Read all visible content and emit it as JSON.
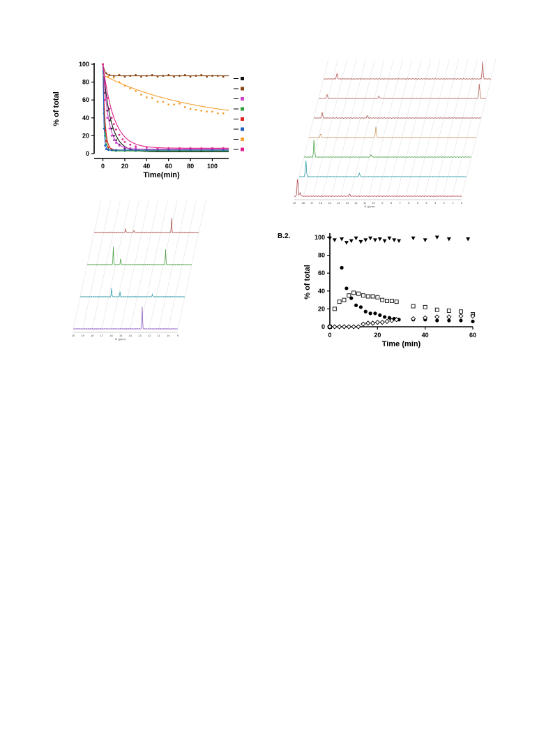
{
  "chart_data": [
    {
      "type": "scatter",
      "id": "kinetics-color",
      "ylabel": "% of total",
      "xlabel": "Time(min)",
      "xlim": [
        -8,
        115
      ],
      "ylim": [
        0,
        100
      ],
      "xticks": [
        0,
        20,
        40,
        60,
        80,
        100
      ],
      "yticks": [
        0,
        20,
        40,
        60,
        80,
        100
      ],
      "legend_position": "right",
      "series": [
        {
          "color": "#111111",
          "k": 0.14,
          "plateau": 2,
          "points": [
            [
              0,
              100
            ],
            [
              2,
              68
            ],
            [
              4,
              48
            ],
            [
              6,
              37
            ],
            [
              8,
              28
            ],
            [
              10,
              20
            ],
            [
              12,
              15
            ],
            [
              15,
              10
            ],
            [
              20,
              6
            ],
            [
              25,
              4
            ],
            [
              30,
              3
            ],
            [
              40,
              3
            ],
            [
              50,
              3
            ],
            [
              60,
              3
            ],
            [
              70,
              3
            ],
            [
              80,
              3
            ],
            [
              90,
              3
            ],
            [
              100,
              3
            ],
            [
              110,
              3
            ]
          ]
        },
        {
          "color": "#8B4513",
          "k": 0.5,
          "plateau": 87,
          "points": [
            [
              0,
              100
            ],
            [
              3,
              90
            ],
            [
              6,
              88
            ],
            [
              10,
              87
            ],
            [
              15,
              88
            ],
            [
              20,
              86
            ],
            [
              25,
              87
            ],
            [
              30,
              88
            ],
            [
              35,
              86
            ],
            [
              40,
              87
            ],
            [
              45,
              88
            ],
            [
              50,
              86
            ],
            [
              55,
              87
            ],
            [
              60,
              88
            ],
            [
              65,
              86
            ],
            [
              70,
              87
            ],
            [
              75,
              88
            ],
            [
              80,
              86
            ],
            [
              85,
              87
            ],
            [
              90,
              88
            ],
            [
              95,
              86
            ],
            [
              100,
              87
            ],
            [
              105,
              87
            ],
            [
              110,
              86
            ]
          ]
        },
        {
          "color": "#CC44CC",
          "k": 0.2,
          "plateau": 5,
          "points": [
            [
              0,
              100
            ],
            [
              2,
              60
            ],
            [
              4,
              40
            ],
            [
              6,
              28
            ],
            [
              8,
              20
            ],
            [
              10,
              15
            ],
            [
              12,
              12
            ],
            [
              15,
              9
            ],
            [
              20,
              7
            ],
            [
              25,
              6
            ],
            [
              30,
              6
            ],
            [
              40,
              5
            ],
            [
              50,
              5
            ],
            [
              60,
              6
            ],
            [
              70,
              5
            ],
            [
              80,
              6
            ],
            [
              90,
              5
            ],
            [
              100,
              6
            ],
            [
              110,
              5
            ]
          ]
        },
        {
          "color": "#2E9E3A",
          "k": 0.7,
          "plateau": 3,
          "points": [
            [
              0,
              100
            ],
            [
              1,
              45
            ],
            [
              2,
              20
            ],
            [
              3,
              10
            ],
            [
              5,
              5
            ],
            [
              8,
              4
            ],
            [
              12,
              3
            ],
            [
              20,
              3
            ],
            [
              30,
              3
            ],
            [
              40,
              3
            ],
            [
              60,
              3
            ],
            [
              80,
              3
            ],
            [
              100,
              3
            ],
            [
              110,
              3
            ]
          ]
        },
        {
          "color": "#E02020",
          "k": 0.55,
          "plateau": 4,
          "points": [
            [
              0,
              100
            ],
            [
              1,
              50
            ],
            [
              2,
              26
            ],
            [
              3,
              14
            ],
            [
              5,
              7
            ],
            [
              8,
              5
            ],
            [
              12,
              4
            ],
            [
              20,
              4
            ],
            [
              30,
              4
            ],
            [
              40,
              4
            ],
            [
              60,
              4
            ],
            [
              80,
              4
            ],
            [
              100,
              4
            ],
            [
              110,
              4
            ]
          ]
        },
        {
          "color": "#1F5FC4",
          "k": 1.2,
          "plateau": 4,
          "points": [
            [
              0,
              100
            ],
            [
              1,
              28
            ],
            [
              2,
              9
            ],
            [
              3,
              5
            ],
            [
              5,
              4
            ],
            [
              8,
              4
            ],
            [
              12,
              4
            ],
            [
              20,
              4
            ],
            [
              30,
              4
            ],
            [
              40,
              4
            ],
            [
              60,
              4
            ],
            [
              80,
              4
            ],
            [
              100,
              4
            ],
            [
              110,
              4
            ]
          ]
        },
        {
          "color": "#F5A030",
          "k": 0.012,
          "plateau": 35,
          "start": 88,
          "points": [
            [
              0,
              100
            ],
            [
              5,
              86
            ],
            [
              10,
              85
            ],
            [
              15,
              80
            ],
            [
              20,
              76
            ],
            [
              25,
              73
            ],
            [
              30,
              70
            ],
            [
              35,
              66
            ],
            [
              40,
              63
            ],
            [
              45,
              62
            ],
            [
              50,
              58
            ],
            [
              55,
              58
            ],
            [
              60,
              55
            ],
            [
              65,
              55
            ],
            [
              70,
              56
            ],
            [
              75,
              52
            ],
            [
              80,
              50
            ],
            [
              85,
              49
            ],
            [
              90,
              48
            ],
            [
              95,
              47
            ],
            [
              100,
              47
            ],
            [
              105,
              45
            ],
            [
              110,
              45
            ]
          ]
        },
        {
          "color": "#E0208C",
          "k": 0.1,
          "plateau": 6,
          "points": [
            [
              0,
              100
            ],
            [
              2,
              78
            ],
            [
              4,
              62
            ],
            [
              6,
              50
            ],
            [
              8,
              40
            ],
            [
              10,
              33
            ],
            [
              12,
              27
            ],
            [
              15,
              21
            ],
            [
              18,
              16
            ],
            [
              20,
              13
            ],
            [
              25,
              10
            ],
            [
              30,
              8
            ],
            [
              40,
              7
            ],
            [
              50,
              6
            ],
            [
              60,
              6
            ],
            [
              70,
              6
            ],
            [
              80,
              6
            ],
            [
              90,
              6
            ],
            [
              100,
              6
            ],
            [
              110,
              6
            ]
          ]
        }
      ]
    },
    {
      "type": "scatter",
      "id": "kinetics-bw",
      "panel_label": "B.2.",
      "ylabel": "% of total",
      "xlabel": "Time (min)",
      "xlim": [
        0,
        60
      ],
      "ylim": [
        0,
        100
      ],
      "xticks": [
        0,
        20,
        40,
        60
      ],
      "yticks": [
        0,
        20,
        40,
        60,
        80,
        100
      ],
      "series": [
        {
          "marker": "triangle-down",
          "points": [
            [
              0,
              99
            ],
            [
              2,
              97
            ],
            [
              5,
              98
            ],
            [
              7,
              94
            ],
            [
              9,
              96
            ],
            [
              11,
              99
            ],
            [
              13,
              95
            ],
            [
              15,
              97
            ],
            [
              17,
              99
            ],
            [
              19,
              97
            ],
            [
              21,
              98
            ],
            [
              23,
              96
            ],
            [
              25,
              99
            ],
            [
              27,
              97
            ],
            [
              29,
              96
            ],
            [
              35,
              99
            ],
            [
              40,
              97
            ],
            [
              45,
              100
            ],
            [
              50,
              98
            ],
            [
              58,
              98
            ]
          ]
        },
        {
          "marker": "circle-filled",
          "points": [
            [
              0,
              0
            ],
            [
              5,
              66
            ],
            [
              7,
              43
            ],
            [
              9,
              32
            ],
            [
              11,
              24
            ],
            [
              13,
              22
            ],
            [
              15,
              17
            ],
            [
              17,
              15
            ],
            [
              19,
              15
            ],
            [
              21,
              13
            ],
            [
              23,
              11
            ],
            [
              25,
              10
            ],
            [
              27,
              9
            ],
            [
              29,
              8
            ],
            [
              35,
              8
            ],
            [
              40,
              8
            ],
            [
              45,
              7
            ],
            [
              50,
              7
            ],
            [
              55,
              7
            ],
            [
              60,
              6
            ]
          ]
        },
        {
          "marker": "square-open",
          "points": [
            [
              0,
              0
            ],
            [
              2,
              20
            ],
            [
              4,
              28
            ],
            [
              6,
              30
            ],
            [
              8,
              35
            ],
            [
              10,
              38
            ],
            [
              12,
              37
            ],
            [
              14,
              35
            ],
            [
              16,
              34
            ],
            [
              18,
              34
            ],
            [
              20,
              33
            ],
            [
              22,
              30
            ],
            [
              24,
              29
            ],
            [
              26,
              29
            ],
            [
              28,
              28
            ],
            [
              35,
              23
            ],
            [
              40,
              22
            ],
            [
              45,
              19
            ],
            [
              50,
              18
            ],
            [
              55,
              17
            ],
            [
              60,
              14
            ]
          ]
        },
        {
          "marker": "diamond-open",
          "points": [
            [
              0,
              0
            ],
            [
              2,
              0
            ],
            [
              4,
              0
            ],
            [
              6,
              0
            ],
            [
              8,
              0
            ],
            [
              10,
              0
            ],
            [
              12,
              0
            ],
            [
              14,
              3
            ],
            [
              16,
              4
            ],
            [
              18,
              4
            ],
            [
              20,
              5
            ],
            [
              22,
              5
            ],
            [
              24,
              6
            ],
            [
              26,
              7
            ],
            [
              28,
              8
            ],
            [
              35,
              9
            ],
            [
              40,
              10
            ],
            [
              45,
              11
            ],
            [
              50,
              11
            ],
            [
              55,
              12
            ],
            [
              60,
              12
            ]
          ]
        }
      ]
    },
    {
      "type": "spectrum",
      "id": "nmr-stack-large",
      "axis_ticks": [
        "19",
        "18",
        "17",
        "16",
        "15",
        "14",
        "13",
        "12",
        "11",
        "10",
        "9",
        "8",
        "7",
        "6",
        "5",
        "4",
        "3",
        "2",
        "1",
        "0"
      ],
      "axis_label": "f1 (ppm)",
      "traces": [
        {
          "color": "#B04A52"
        },
        {
          "color": "#2E9AA6"
        },
        {
          "color": "#4FA24A"
        },
        {
          "color": "#C79A60"
        },
        {
          "color": "#A8564E"
        },
        {
          "color": "#B66A60"
        },
        {
          "color": "#B05A58"
        }
      ]
    },
    {
      "type": "spectrum",
      "id": "nmr-stack-small",
      "axis_ticks": [
        "20",
        "19",
        "18",
        "17",
        "16",
        "15",
        "14",
        "13",
        "12",
        "11",
        "10",
        "9"
      ],
      "axis_label": "f1 (ppm)",
      "traces": [
        {
          "color": "#8E5BBF"
        },
        {
          "color": "#2E9AA6"
        },
        {
          "color": "#4FA24A"
        },
        {
          "color": "#B0554E"
        }
      ]
    }
  ]
}
